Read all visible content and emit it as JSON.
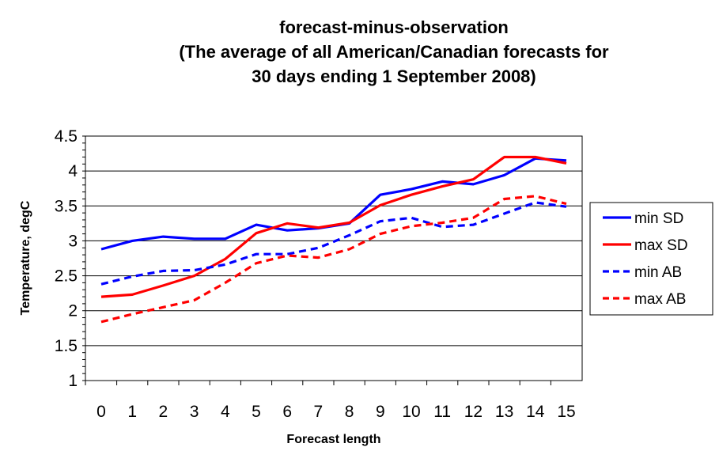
{
  "chart_data": {
    "type": "line",
    "title_lines": [
      "forecast-minus-observation",
      "(The average of all American/Canadian forecasts for",
      "30 days ending 1 September 2008)"
    ],
    "xlabel": "Forecast length",
    "ylabel": "Temperature, degC",
    "categories": [
      "0",
      "1",
      "2",
      "3",
      "4",
      "5",
      "6",
      "7",
      "8",
      "9",
      "10",
      "11",
      "12",
      "13",
      "14",
      "15"
    ],
    "x": [
      0,
      1,
      2,
      3,
      4,
      5,
      6,
      7,
      8,
      9,
      10,
      11,
      12,
      13,
      14,
      15
    ],
    "ylim": [
      1,
      4.5
    ],
    "yticks": [
      1,
      1.5,
      2,
      2.5,
      3,
      3.5,
      4,
      4.5
    ],
    "ytick_labels": [
      "1",
      "1.5",
      "2",
      "2.5",
      "3",
      "3.5",
      "4",
      "4.5"
    ],
    "grid": "horizontal",
    "legend_position": "right",
    "series": [
      {
        "name": "min SD",
        "color": "#0000ff",
        "dash": "solid",
        "values": [
          2.88,
          3.0,
          3.06,
          3.03,
          3.03,
          3.23,
          3.15,
          3.18,
          3.25,
          3.66,
          3.74,
          3.85,
          3.81,
          3.94,
          4.18,
          4.15
        ]
      },
      {
        "name": "max SD",
        "color": "#ff0000",
        "dash": "solid",
        "values": [
          2.2,
          2.23,
          2.36,
          2.5,
          2.74,
          3.11,
          3.25,
          3.19,
          3.26,
          3.51,
          3.66,
          3.78,
          3.88,
          4.2,
          4.2,
          4.11
        ]
      },
      {
        "name": "min AB",
        "color": "#0000ff",
        "dash": "dashed",
        "values": [
          2.38,
          2.49,
          2.57,
          2.58,
          2.66,
          2.81,
          2.81,
          2.9,
          3.08,
          3.28,
          3.33,
          3.2,
          3.23,
          3.39,
          3.55,
          3.49
        ]
      },
      {
        "name": "max AB",
        "color": "#ff0000",
        "dash": "dashed",
        "values": [
          1.84,
          1.95,
          2.05,
          2.15,
          2.4,
          2.68,
          2.79,
          2.76,
          2.88,
          3.1,
          3.21,
          3.26,
          3.33,
          3.6,
          3.64,
          3.53
        ]
      }
    ]
  }
}
